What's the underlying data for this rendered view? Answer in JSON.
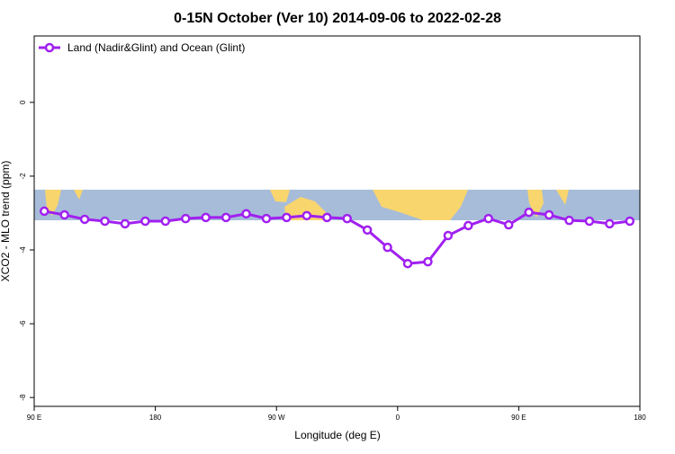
{
  "chart_data": {
    "type": "line",
    "title": "0-15N October (Ver 10)   2014-09-06 to 2022-02-28",
    "x_label": "Longitude (deg E)",
    "y_label": "XCO2 - MLO trend (ppm)",
    "xlim": [
      90,
      540
    ],
    "ylim": [
      -8.24,
      1.8
    ],
    "xticks": [
      {
        "value": 90,
        "label": "90 E"
      },
      {
        "value": 180,
        "label": "180"
      },
      {
        "value": 270,
        "label": "90 W"
      },
      {
        "value": 360,
        "label": "0"
      },
      {
        "value": 450,
        "label": "90 E"
      },
      {
        "value": 540,
        "label": "180"
      }
    ],
    "yticks": [
      0,
      -2,
      -4,
      -6,
      -8
    ],
    "legend": "top-left",
    "x": [
      97.5,
      112.5,
      127.5,
      142.5,
      157.5,
      172.5,
      187.5,
      202.5,
      217.5,
      232.5,
      247.5,
      262.5,
      277.5,
      292.5,
      307.5,
      322.5,
      337.5,
      352.5,
      367.5,
      382.5,
      397.5,
      412.5,
      427.5,
      442.5,
      457.5,
      472.5,
      487.5,
      502.5,
      517.5,
      532.5
    ],
    "series": [
      {
        "name": "Land (Nadir&Glint) and Ocean (Glint)",
        "color": "#a020f0",
        "values": [
          -2.95,
          -3.05,
          -3.17,
          -3.22,
          -3.29,
          -3.22,
          -3.22,
          -3.15,
          -3.12,
          -3.12,
          -3.02,
          -3.15,
          -3.12,
          -3.07,
          -3.12,
          -3.15,
          -3.46,
          -3.93,
          -4.37,
          -4.32,
          -3.61,
          -3.34,
          -3.15,
          -3.32,
          -2.98,
          -3.05,
          -3.2,
          -3.22,
          -3.29,
          -3.22
        ]
      }
    ]
  }
}
